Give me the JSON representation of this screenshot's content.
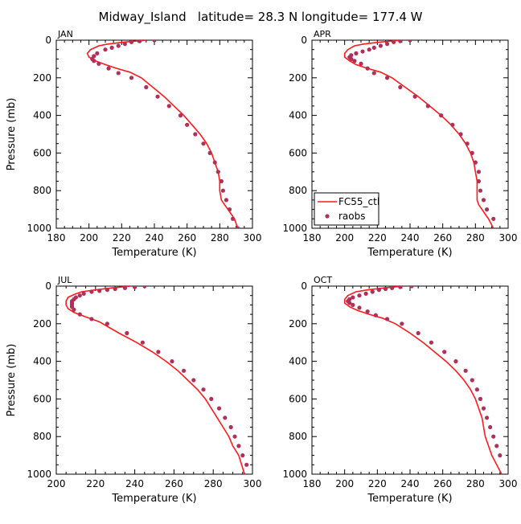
{
  "figure": {
    "title": "Midway_Island   latitude= 28.3 N longitude= 177.4 W",
    "legend": {
      "model_label": "FC55_ctl",
      "obs_label": "raobs"
    },
    "colors": {
      "model": "#ff1a1a",
      "obs": "#b0305a",
      "axis": "#000000"
    }
  },
  "chart_data": [
    {
      "type": "line",
      "panel_label": "JAN",
      "xlabel": "Temperature (K)",
      "ylabel": "Pressure (mb)",
      "xlim": [
        180,
        300
      ],
      "ylim": [
        1000,
        0
      ],
      "xticks": [
        180,
        200,
        220,
        240,
        260,
        280,
        300
      ],
      "yticks": [
        0,
        200,
        400,
        600,
        800,
        1000
      ],
      "series": [
        {
          "name": "FC55_ctl",
          "style": "line",
          "x": [
            235,
            222,
            212,
            206,
            201,
            199,
            200,
            204,
            210,
            217,
            225,
            232,
            239,
            246,
            252,
            258,
            263,
            268,
            272,
            275,
            277,
            279,
            280,
            280,
            281,
            283,
            285,
            287,
            289,
            291
          ],
          "y": [
            0,
            10,
            20,
            30,
            50,
            70,
            90,
            110,
            130,
            150,
            170,
            200,
            250,
            300,
            350,
            400,
            450,
            500,
            550,
            600,
            650,
            700,
            750,
            800,
            850,
            875,
            900,
            925,
            950,
            1000
          ]
        },
        {
          "name": "raobs",
          "style": "markers",
          "x": [
            240,
            231,
            226,
            222,
            218,
            214,
            210,
            205,
            203,
            202,
            203,
            206,
            212,
            218,
            226,
            235,
            242,
            249,
            256,
            260,
            265,
            270,
            274,
            277,
            279,
            281,
            282,
            284,
            286,
            288,
            291
          ],
          "y": [
            0,
            5,
            10,
            20,
            30,
            40,
            50,
            70,
            85,
            100,
            110,
            125,
            150,
            175,
            200,
            250,
            300,
            350,
            400,
            450,
            500,
            550,
            600,
            650,
            700,
            750,
            800,
            850,
            900,
            950,
            1000
          ]
        }
      ]
    },
    {
      "type": "line",
      "panel_label": "APR",
      "xlabel": "Temperature (K)",
      "ylabel": "",
      "xlim": [
        180,
        300
      ],
      "ylim": [
        1000,
        0
      ],
      "xticks": [
        180,
        200,
        220,
        240,
        260,
        280,
        300
      ],
      "yticks": [
        0,
        200,
        400,
        600,
        800,
        1000
      ],
      "series": [
        {
          "name": "FC55_ctl",
          "style": "line",
          "x": [
            235,
            222,
            212,
            206,
            202,
            200,
            200,
            203,
            207,
            214,
            222,
            229,
            237,
            245,
            252,
            259,
            265,
            270,
            274,
            277,
            279,
            280,
            281,
            281,
            281,
            282,
            284,
            286,
            288,
            291
          ],
          "y": [
            0,
            10,
            20,
            30,
            50,
            70,
            90,
            110,
            130,
            150,
            170,
            200,
            250,
            300,
            350,
            400,
            450,
            500,
            550,
            600,
            650,
            700,
            750,
            800,
            850,
            875,
            900,
            925,
            950,
            1000
          ]
        },
        {
          "name": "raobs",
          "style": "markers",
          "x": [
            240,
            234,
            230,
            226,
            222,
            218,
            215,
            211,
            207,
            204,
            203,
            204,
            206,
            210,
            214,
            218,
            226,
            234,
            243,
            251,
            259,
            266,
            271,
            275,
            278,
            280,
            282,
            282,
            283,
            285,
            287,
            291
          ],
          "y": [
            0,
            5,
            10,
            20,
            30,
            40,
            50,
            60,
            70,
            80,
            90,
            100,
            110,
            125,
            150,
            175,
            200,
            250,
            300,
            350,
            400,
            450,
            500,
            550,
            600,
            650,
            700,
            750,
            800,
            850,
            900,
            950
          ]
        }
      ]
    },
    {
      "type": "line",
      "panel_label": "JUL",
      "xlabel": "Temperature (K)",
      "ylabel": "Pressure (mb)",
      "xlim": [
        200,
        300
      ],
      "ylim": [
        1000,
        0
      ],
      "xticks": [
        200,
        220,
        240,
        260,
        280,
        300
      ],
      "yticks": [
        0,
        200,
        400,
        600,
        800,
        1000
      ],
      "series": [
        {
          "name": "FC55_ctl",
          "style": "line",
          "x": [
            238,
            228,
            220,
            213,
            209,
            206,
            205,
            205,
            206,
            209,
            214,
            222,
            232,
            241,
            249,
            256,
            262,
            267,
            272,
            276,
            279,
            282,
            285,
            288,
            290,
            293,
            296
          ],
          "y": [
            0,
            10,
            20,
            30,
            45,
            60,
            80,
            100,
            120,
            140,
            160,
            190,
            250,
            300,
            350,
            400,
            450,
            500,
            550,
            600,
            650,
            700,
            750,
            800,
            850,
            900,
            1000
          ]
        },
        {
          "name": "raobs",
          "style": "markers",
          "x": [
            245,
            240,
            235,
            230,
            226,
            222,
            218,
            214,
            212,
            210,
            209,
            208,
            208,
            208,
            208,
            209,
            212,
            218,
            226,
            236,
            244,
            252,
            259,
            265,
            270,
            275,
            279,
            283,
            286,
            289,
            291,
            293,
            295,
            297
          ],
          "y": [
            0,
            5,
            10,
            15,
            20,
            25,
            30,
            40,
            50,
            60,
            70,
            80,
            90,
            100,
            110,
            125,
            150,
            175,
            200,
            250,
            300,
            350,
            400,
            450,
            500,
            550,
            600,
            650,
            700,
            750,
            800,
            850,
            900,
            950
          ]
        }
      ]
    },
    {
      "type": "line",
      "panel_label": "OCT",
      "xlabel": "Temperature (K)",
      "ylabel": "",
      "xlim": [
        180,
        300
      ],
      "ylim": [
        1000,
        0
      ],
      "xticks": [
        180,
        200,
        220,
        240,
        260,
        280,
        300
      ],
      "yticks": [
        0,
        200,
        400,
        600,
        800,
        1000
      ],
      "series": [
        {
          "name": "FC55_ctl",
          "style": "line",
          "x": [
            236,
            224,
            214,
            207,
            202,
            200,
            200,
            203,
            208,
            215,
            223,
            231,
            240,
            248,
            255,
            262,
            268,
            273,
            277,
            280,
            282,
            284,
            285,
            286,
            288,
            290,
            293,
            296
          ],
          "y": [
            0,
            10,
            20,
            30,
            50,
            70,
            90,
            110,
            130,
            150,
            170,
            200,
            250,
            300,
            350,
            400,
            450,
            500,
            550,
            600,
            650,
            700,
            750,
            800,
            850,
            900,
            950,
            1000
          ]
        },
        {
          "name": "raobs",
          "style": "markers",
          "x": [
            241,
            234,
            229,
            225,
            221,
            217,
            213,
            209,
            205,
            203,
            202,
            203,
            205,
            209,
            214,
            219,
            226,
            235,
            245,
            253,
            261,
            268,
            274,
            278,
            281,
            283,
            285,
            287,
            289,
            291,
            293,
            295
          ],
          "y": [
            0,
            5,
            10,
            15,
            20,
            30,
            40,
            50,
            60,
            70,
            80,
            90,
            100,
            115,
            135,
            155,
            175,
            200,
            250,
            300,
            350,
            400,
            450,
            500,
            550,
            600,
            650,
            700,
            750,
            800,
            850,
            900
          ]
        }
      ]
    }
  ]
}
